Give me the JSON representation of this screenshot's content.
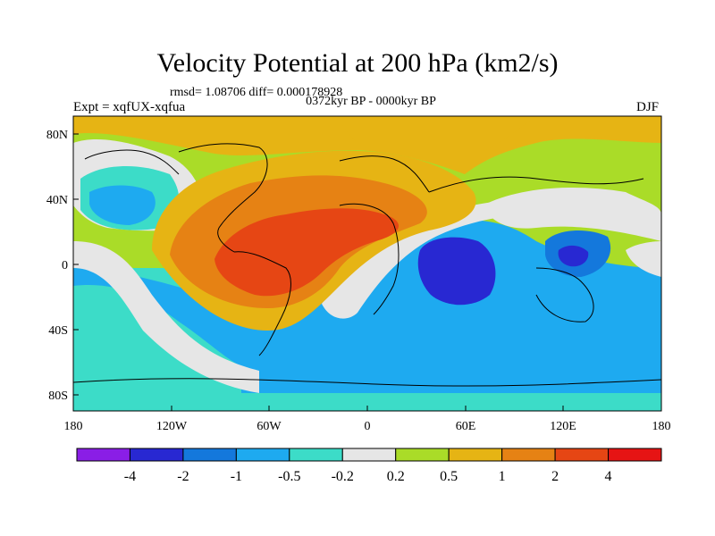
{
  "title": "Velocity Potential at 200 hPa (km2/s)",
  "stats": "rmsd= 1.08706 diff= 0.000178928",
  "period": "0372kyr BP - 0000kyr BP",
  "experiment": "Expt = xqfUX-xqfua",
  "season": "DJF",
  "lat_ticks": [
    "80N",
    "40N",
    "0",
    "40S",
    "80S"
  ],
  "lon_ticks": [
    "180",
    "120W",
    "60W",
    "0",
    "60E",
    "120E",
    "180"
  ],
  "colorbar": {
    "labels": [
      "-4",
      "-2",
      "-1",
      "-0.5",
      "-0.2",
      "0.2",
      "0.5",
      "1",
      "2",
      "4"
    ],
    "colors": [
      "#8a1ee6",
      "#2828d2",
      "#1478dc",
      "#1eaaf0",
      "#3cdcc8",
      "#e6e6e6",
      "#aadc28",
      "#e6b414",
      "#e68214",
      "#e64614",
      "#e61414"
    ]
  },
  "palette": {
    "ocean_fill": "#1eaaf0",
    "land_line": "#000000"
  }
}
